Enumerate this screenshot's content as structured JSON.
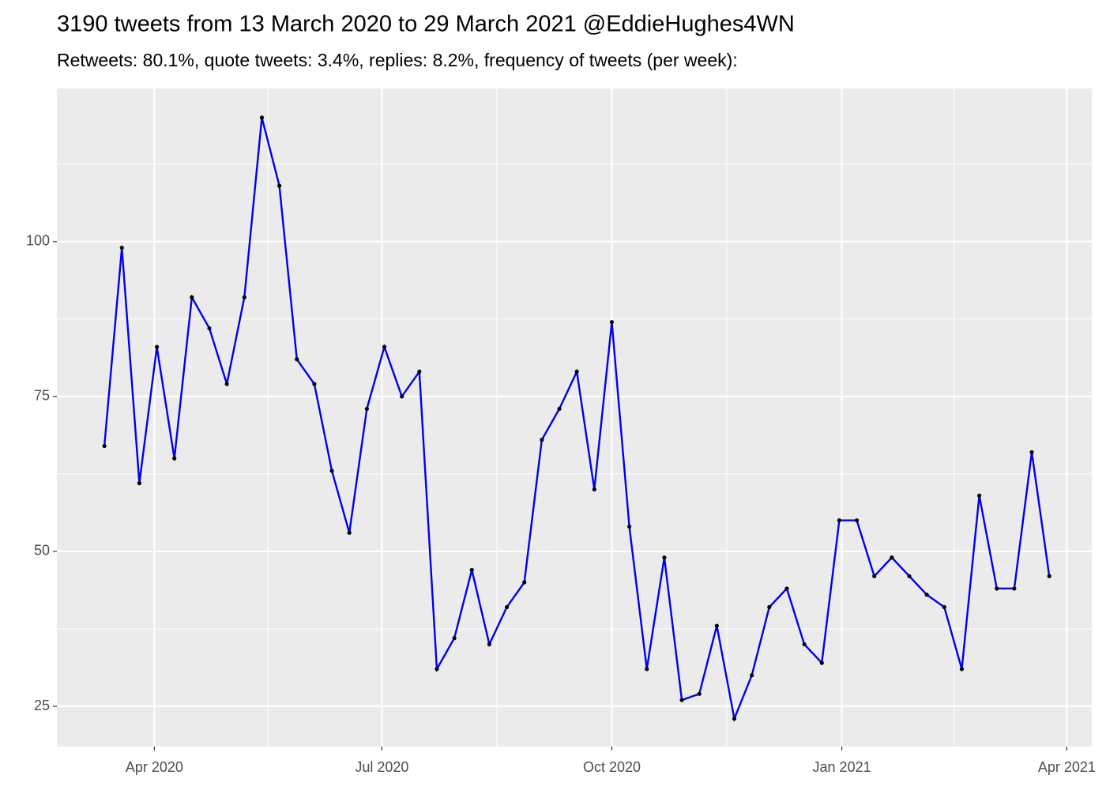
{
  "chart_data": {
    "type": "line",
    "title": "3190 tweets from 13 March 2020 to 29 March 2021 @EddieHughes4WN",
    "subtitle": "Retweets: 80.1%, quote tweets: 3.4%, replies: 8.2%, frequency of tweets (per week):",
    "x": [
      "2020-03-12",
      "2020-03-19",
      "2020-03-26",
      "2020-04-02",
      "2020-04-09",
      "2020-04-16",
      "2020-04-23",
      "2020-04-30",
      "2020-05-07",
      "2020-05-14",
      "2020-05-21",
      "2020-05-28",
      "2020-06-04",
      "2020-06-11",
      "2020-06-18",
      "2020-06-25",
      "2020-07-02",
      "2020-07-09",
      "2020-07-16",
      "2020-07-23",
      "2020-07-30",
      "2020-08-06",
      "2020-08-13",
      "2020-08-20",
      "2020-08-27",
      "2020-09-03",
      "2020-09-10",
      "2020-09-17",
      "2020-09-24",
      "2020-10-01",
      "2020-10-08",
      "2020-10-15",
      "2020-10-22",
      "2020-10-29",
      "2020-11-05",
      "2020-11-12",
      "2020-11-19",
      "2020-11-26",
      "2020-12-03",
      "2020-12-10",
      "2020-12-17",
      "2020-12-24",
      "2020-12-31",
      "2021-01-07",
      "2021-01-14",
      "2021-01-21",
      "2021-01-28",
      "2021-02-04",
      "2021-02-11",
      "2021-02-18",
      "2021-02-25",
      "2021-03-04",
      "2021-03-11",
      "2021-03-18",
      "2021-03-25"
    ],
    "series": [
      {
        "color": "#0000ee",
        "point_color": "#000000",
        "values": [
          67,
          99,
          61,
          83,
          65,
          91,
          86,
          77,
          91,
          120,
          109,
          81,
          77,
          63,
          53,
          73,
          83,
          75,
          79,
          31,
          36,
          47,
          35,
          41,
          45,
          68,
          73,
          79,
          60,
          87,
          54,
          31,
          49,
          26,
          27,
          38,
          23,
          30,
          41,
          44,
          35,
          32,
          55,
          55,
          46,
          49,
          46,
          43,
          41,
          31,
          59,
          44,
          44,
          66,
          46
        ]
      }
    ],
    "xlim": [
      "2020-02-22",
      "2021-04-11"
    ],
    "xticks": [
      {
        "value": "2020-04-01",
        "label": "Apr 2020"
      },
      {
        "value": "2020-07-01",
        "label": "Jul 2020"
      },
      {
        "value": "2020-10-01",
        "label": "Oct 2020"
      },
      {
        "value": "2021-01-01",
        "label": "Jan 2021"
      },
      {
        "value": "2021-04-01",
        "label": "Apr 2021"
      }
    ],
    "ylim": [
      18.5,
      124.7
    ],
    "yticks": [
      25,
      50,
      75,
      100
    ],
    "grid": true
  }
}
